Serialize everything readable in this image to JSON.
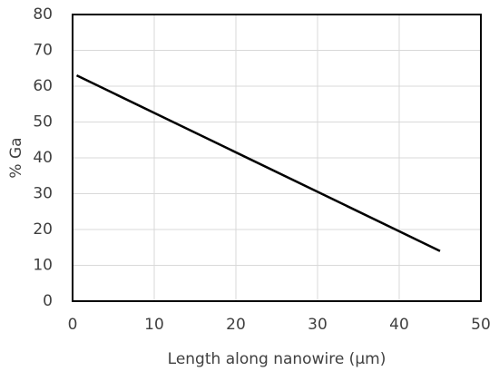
{
  "chart_data": {
    "type": "line",
    "x_label": "Length along nanowire (μm)",
    "y_label": "% Ga",
    "series": [
      {
        "name": "% Ga",
        "color": "#000000",
        "x": [
          0.5,
          45
        ],
        "values": [
          63,
          14
        ]
      }
    ],
    "xlim": [
      0,
      50
    ],
    "xticks": [
      0,
      10,
      20,
      30,
      40,
      50
    ],
    "ylim": [
      0,
      80
    ],
    "yticks": [
      0,
      10,
      20,
      30,
      40,
      50,
      60,
      70,
      80
    ],
    "grid": true
  }
}
